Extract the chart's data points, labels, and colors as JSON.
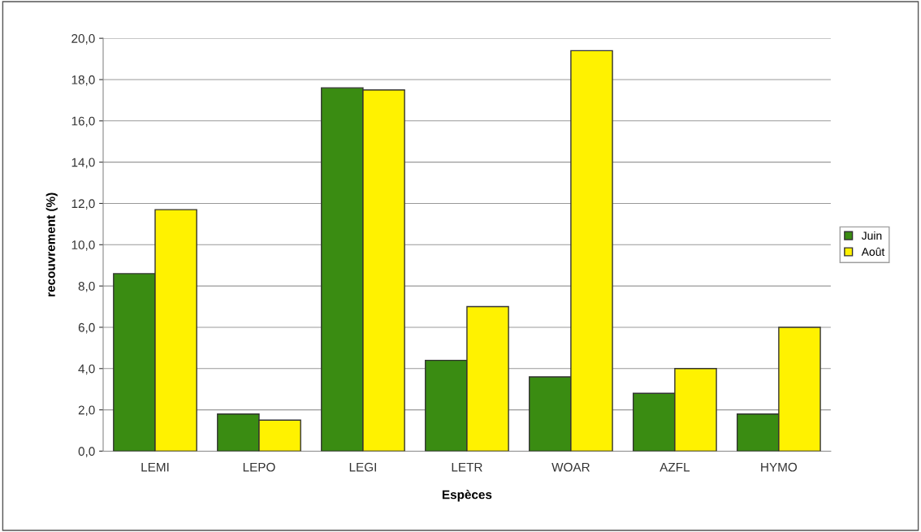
{
  "chart_data": {
    "type": "bar",
    "xlabel": "Espèces",
    "ylabel": "recouvrement (%)",
    "categories": [
      "LEMI",
      "LEPO",
      "LEGI",
      "LETR",
      "WOAR",
      "AZFL",
      "HYMO"
    ],
    "series": [
      {
        "name": "Juin",
        "color": "#3a8c12",
        "values": [
          8.6,
          1.8,
          17.6,
          4.4,
          3.6,
          2.8,
          1.8
        ]
      },
      {
        "name": "Août",
        "color": "#fff200",
        "values": [
          11.7,
          1.5,
          17.5,
          7.0,
          19.4,
          4.0,
          6.0
        ]
      }
    ],
    "ylim": [
      0,
      20
    ],
    "yticks": [
      {
        "value": 0,
        "label": "0,0"
      },
      {
        "value": 2,
        "label": "2,0"
      },
      {
        "value": 4,
        "label": "4,0"
      },
      {
        "value": 6,
        "label": "6,0"
      },
      {
        "value": 8,
        "label": "8,0"
      },
      {
        "value": 10,
        "label": "10,0"
      },
      {
        "value": 12,
        "label": "12,0"
      },
      {
        "value": 14,
        "label": "14,0"
      },
      {
        "value": 16,
        "label": "16,0"
      },
      {
        "value": 18,
        "label": "18,0"
      },
      {
        "value": 20,
        "label": "20,0"
      }
    ],
    "grid": "y",
    "legend": "right"
  }
}
